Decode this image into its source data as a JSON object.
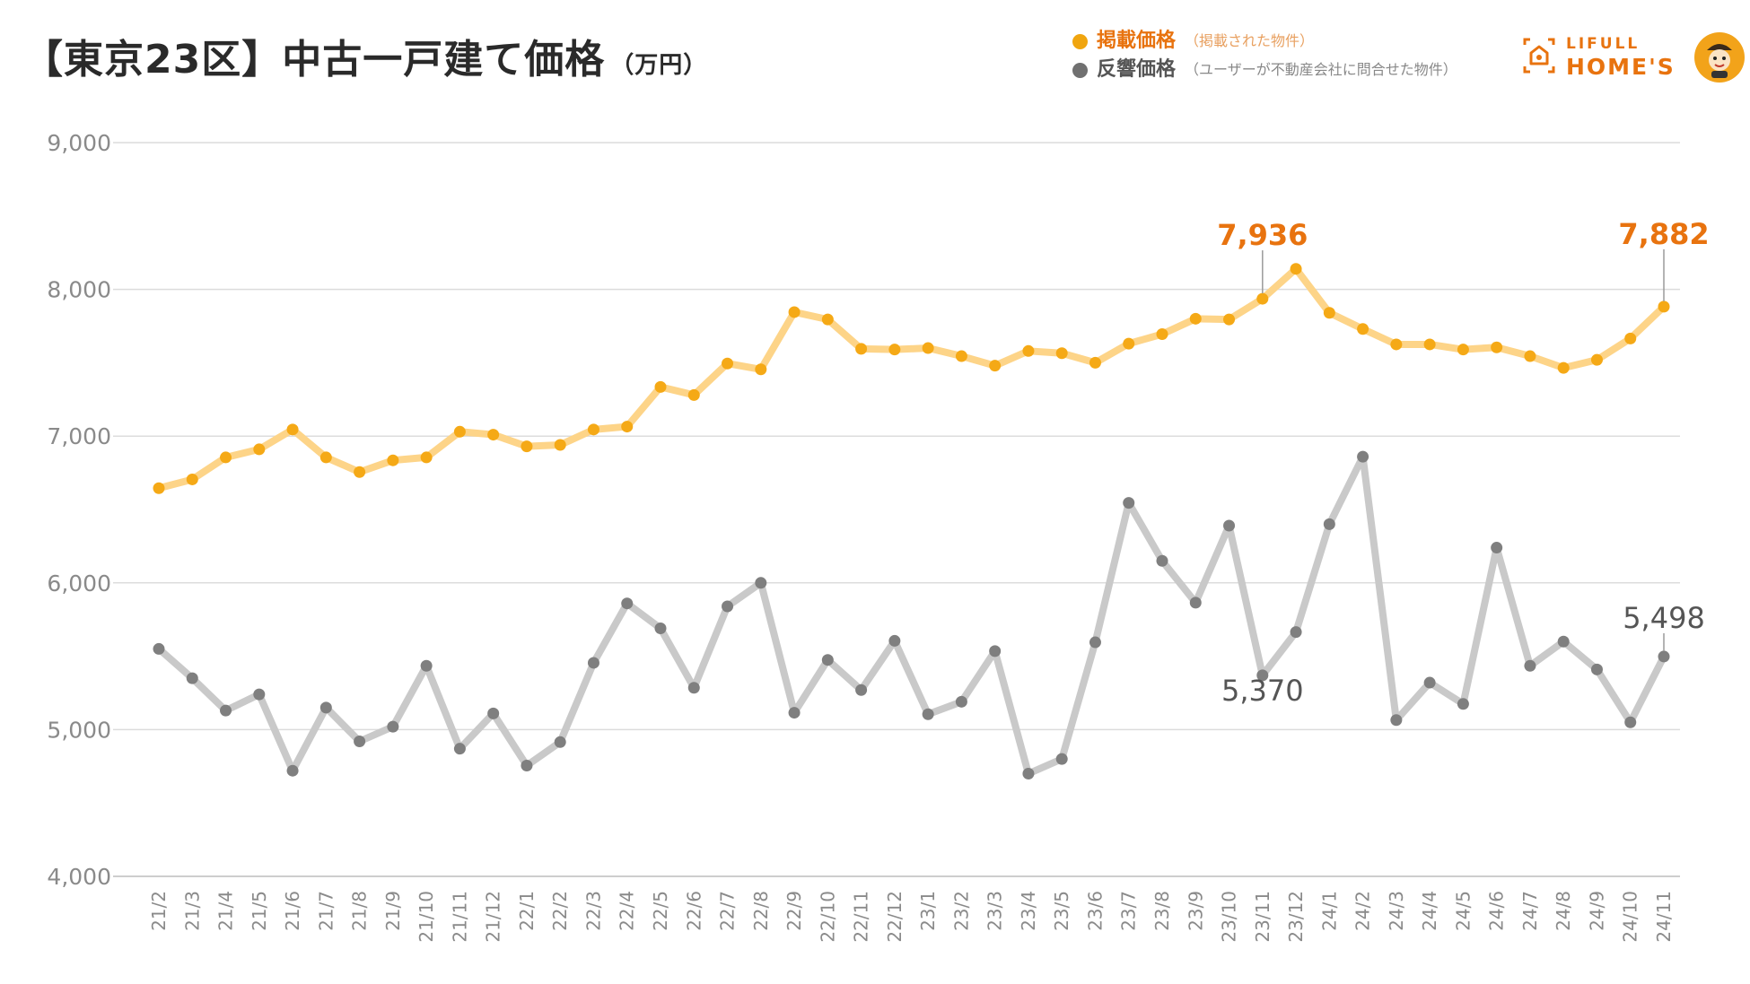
{
  "title": "【東京23区】中古一戸建て価格",
  "title_unit": "（万円）",
  "legend": [
    {
      "name": "掲載価格",
      "desc": "（掲載された物件）",
      "color": "#f0a50f",
      "text_color": "#e8730f"
    },
    {
      "name": "反響価格",
      "desc": "（ユーザーが不動産会社に問合せた物件）",
      "color": "#707070",
      "text_color": "#555555"
    }
  ],
  "logo": {
    "line1": "LIFULL",
    "line2": "HOME'S"
  },
  "icons": {
    "logo": "house-logo-icon",
    "mascot": "mascot-icon"
  },
  "chart_data": {
    "type": "line",
    "title": "【東京23区】中古一戸建て価格",
    "ylabel": "（万円）",
    "ylim": [
      4000,
      9000
    ],
    "yticks": [
      4000,
      5000,
      6000,
      7000,
      8000,
      9000
    ],
    "ytick_labels": [
      "4,000",
      "5,000",
      "6,000",
      "7,000",
      "8,000",
      "9,000"
    ],
    "grid": true,
    "categories": [
      "21/2",
      "21/3",
      "21/4",
      "21/5",
      "21/6",
      "21/7",
      "21/8",
      "21/9",
      "21/10",
      "21/11",
      "21/12",
      "22/1",
      "22/2",
      "22/3",
      "22/4",
      "22/5",
      "22/6",
      "22/7",
      "22/8",
      "22/9",
      "22/10",
      "22/11",
      "22/12",
      "23/1",
      "23/2",
      "23/3",
      "23/4",
      "23/5",
      "23/6",
      "23/7",
      "23/8",
      "23/9",
      "23/10",
      "23/11",
      "23/12",
      "24/1",
      "24/2",
      "24/3",
      "24/4",
      "24/5",
      "24/6",
      "24/7",
      "24/8",
      "24/9",
      "24/10",
      "24/11"
    ],
    "series": [
      {
        "name": "掲載価格",
        "line_color": "#fdd488",
        "marker_color": "#f5a916",
        "label_color": "#e8730f",
        "values": [
          6645,
          6705,
          6855,
          6910,
          7045,
          6855,
          6755,
          6835,
          6855,
          7030,
          7010,
          6930,
          6940,
          7045,
          7065,
          7335,
          7280,
          7495,
          7455,
          7845,
          7795,
          7595,
          7590,
          7600,
          7545,
          7480,
          7580,
          7565,
          7500,
          7630,
          7695,
          7800,
          7795,
          7936,
          8140,
          7840,
          7730,
          7625,
          7625,
          7590,
          7605,
          7545,
          7465,
          7520,
          7665,
          7882
        ],
        "annotations": [
          {
            "index": 33,
            "label": "7,936"
          },
          {
            "index": 45,
            "label": "7,882"
          }
        ]
      },
      {
        "name": "反響価格",
        "line_color": "#c9c9c9",
        "marker_color": "#7f7f7f",
        "label_color": "#555555",
        "values": [
          5550,
          5350,
          5130,
          5240,
          4720,
          5150,
          4920,
          5020,
          5435,
          4870,
          5110,
          4755,
          4915,
          5455,
          5860,
          5690,
          5285,
          5840,
          6000,
          5115,
          5475,
          5270,
          5605,
          5105,
          5190,
          5535,
          4700,
          4800,
          5595,
          6545,
          6150,
          5865,
          6390,
          5370,
          5665,
          6400,
          6860,
          5065,
          5320,
          5175,
          6240,
          5435,
          5600,
          5410,
          5050,
          5498
        ],
        "annotations": [
          {
            "index": 33,
            "label": "5,370"
          },
          {
            "index": 45,
            "label": "5,498"
          }
        ]
      }
    ]
  }
}
